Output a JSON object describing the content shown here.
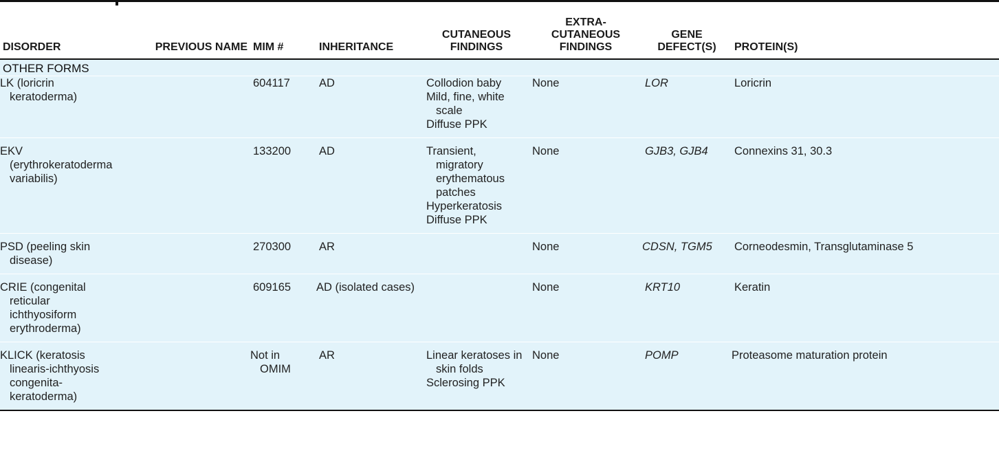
{
  "headers": {
    "disorder": "DISORDER",
    "previous_name": "PREVIOUS NAME",
    "mim": "MIM #",
    "inheritance": "INHERITANCE",
    "cutaneous": "CUTANEOUS FINDINGS",
    "extra_cutaneous": "EXTRA-CUTANEOUS FINDINGS",
    "gene": "GENE DEFECT(S)",
    "protein": "PROTEIN(S)"
  },
  "group_label": "OTHER FORMS",
  "rows": [
    {
      "disorder": "LK (loricrin keratoderma)",
      "previous_name": "",
      "mim": "604117",
      "inheritance": "AD",
      "cutaneous": [
        "Collodion baby",
        "Mild, fine, white scale",
        "Diffuse PPK"
      ],
      "extra": "None",
      "gene": "LOR",
      "protein": "Loricrin"
    },
    {
      "disorder": "EKV (erythrokeratoderma variabilis)",
      "previous_name": "",
      "mim": "133200",
      "inheritance": "AD",
      "cutaneous": [
        "Transient, migratory erythematous patches",
        "Hyperkeratosis",
        "Diffuse PPK"
      ],
      "extra": "None",
      "gene": "GJB3, GJB4",
      "protein": "Connexins 31, 30.3"
    },
    {
      "disorder": "PSD (peeling skin disease)",
      "previous_name": "",
      "mim": "270300",
      "inheritance": "AR",
      "cutaneous": [],
      "extra": "None",
      "gene": "CDSN, TGM5",
      "protein": "Corneodesmin, Transglutaminase 5"
    },
    {
      "disorder": "CRIE (congenital reticular ichthyosiform erythroderma)",
      "previous_name": "",
      "mim": "609165",
      "inheritance": "AD (isolated cases)",
      "cutaneous": [],
      "extra": "None",
      "gene": "KRT10",
      "protein": "Keratin"
    },
    {
      "disorder": "KLICK (keratosis linearis-ichthyosis congenita-keratoderma)",
      "previous_name": "",
      "mim": "Not in OMIM",
      "inheritance": "AR",
      "cutaneous": [
        "Linear keratoses in skin folds",
        "Sclerosing PPK"
      ],
      "extra": "None",
      "gene": "POMP",
      "protein": "Proteasome maturation protein"
    }
  ]
}
